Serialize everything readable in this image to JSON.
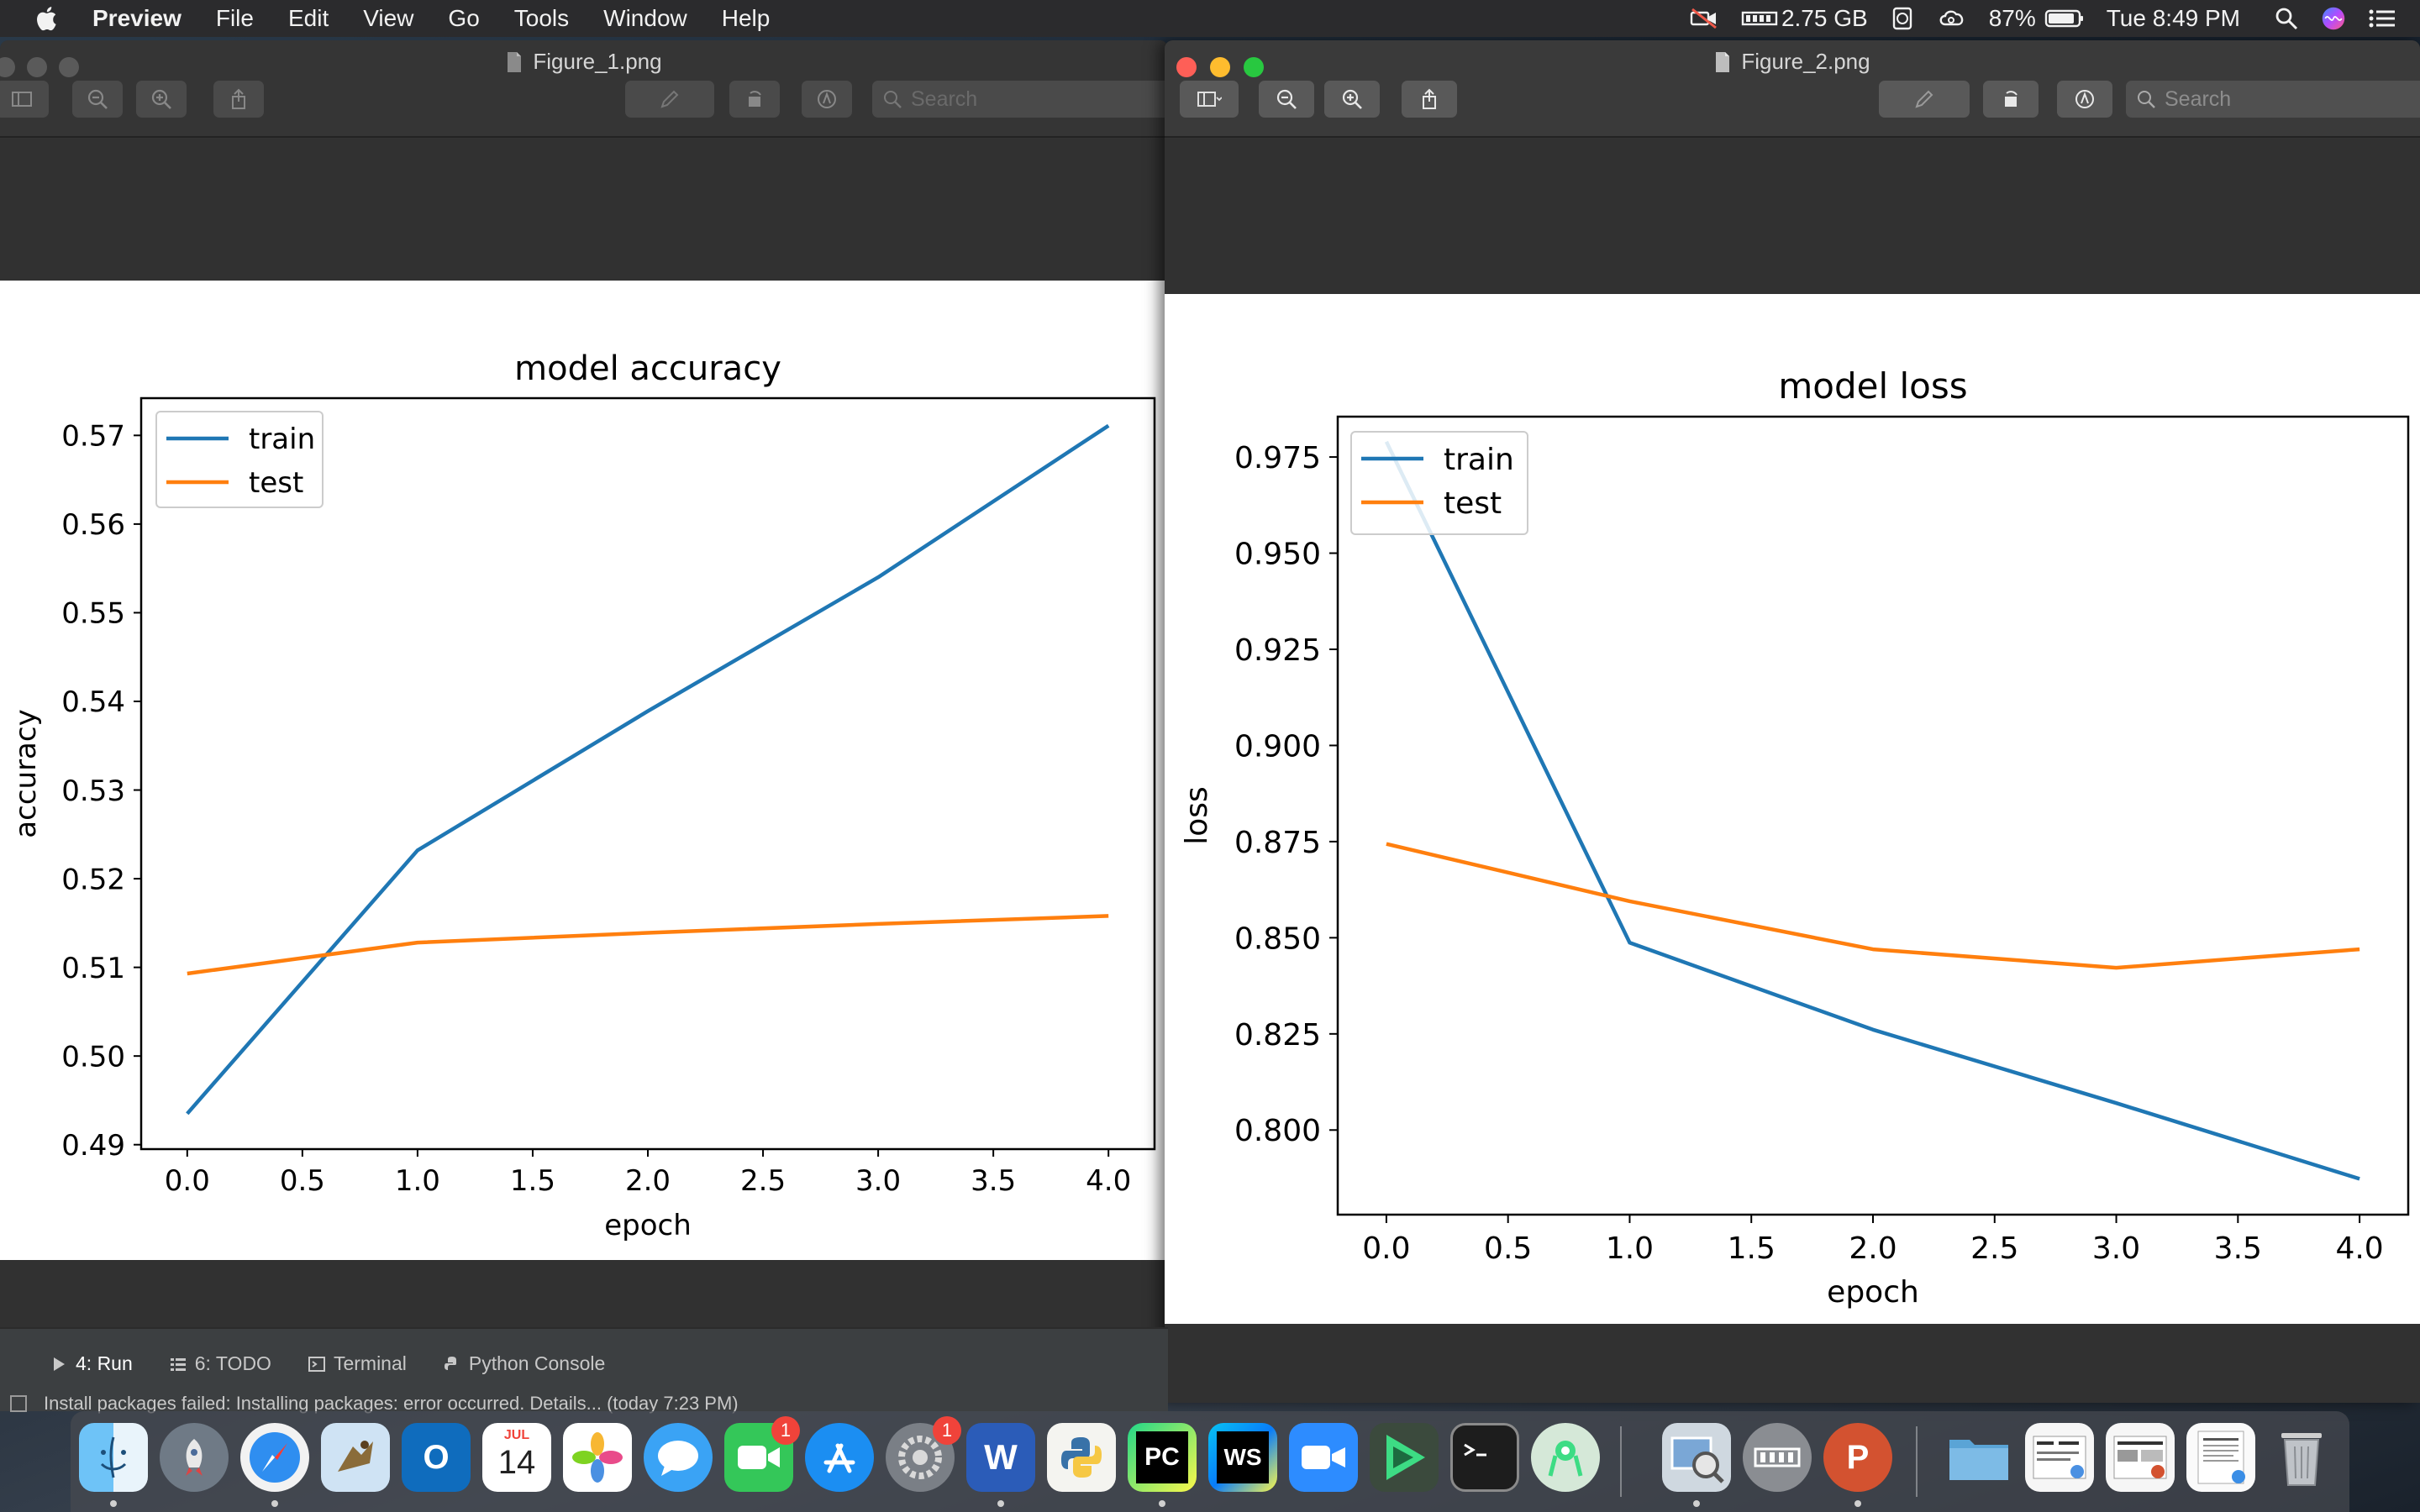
{
  "menubar": {
    "app_name": "Preview",
    "items": [
      "File",
      "Edit",
      "View",
      "Go",
      "Tools",
      "Window",
      "Help"
    ],
    "memory": "2.75 GB",
    "battery": "87%",
    "clock": "Tue 8:49 PM"
  },
  "window1": {
    "title": "Figure_1.png",
    "search_placeholder": "Search"
  },
  "window2": {
    "title": "Figure_2.png",
    "search_placeholder": "Search"
  },
  "ide": {
    "tabs": [
      {
        "label": "4: Run",
        "icon": "play-icon"
      },
      {
        "label": "6: TODO",
        "icon": "list-icon"
      },
      {
        "label": "Terminal",
        "icon": "terminal-icon"
      },
      {
        "label": "Python Console",
        "icon": "python-icon"
      }
    ],
    "status": "Install packages failed: Installing packages: error occurred. Details... (today 7:23 PM)"
  },
  "dock": {
    "calendar_month": "JUL",
    "calendar_day": "14",
    "facetime_badge": "1",
    "sysprefs_badge": "1",
    "word_label": "W",
    "pycharm_label": "PC",
    "webstorm_label": "WS",
    "powerpoint_label": "P",
    "outlook_label": "O",
    "icons": [
      "finder-icon",
      "launchpad-icon",
      "safari-icon",
      "preview-bird-icon",
      "outlook-icon",
      "calendar-icon",
      "photos-icon",
      "messages-icon",
      "facetime-icon",
      "app-store-icon",
      "system-preferences-icon",
      "word-icon",
      "python-launcher-icon",
      "pycharm-icon",
      "webstorm-icon",
      "zoom-icon",
      "android-studio-icon",
      "terminal-icon",
      "android-icon",
      "preview-icon",
      "memory-icon",
      "powerpoint-icon",
      "folder-icon",
      "stack-icon",
      "stack-icon",
      "document-icon",
      "trash-icon"
    ]
  },
  "chart_data": [
    {
      "type": "line",
      "title": "model accuracy",
      "xlabel": "epoch",
      "ylabel": "accuracy",
      "x": [
        0,
        1,
        2,
        3,
        4
      ],
      "xlim": [
        -0.2,
        4.2
      ],
      "ylim": [
        0.4895,
        0.5742
      ],
      "xticks": [
        "0.0",
        "0.5",
        "1.0",
        "1.5",
        "2.0",
        "2.5",
        "3.0",
        "3.5",
        "4.0"
      ],
      "yticks": [
        "0.49",
        "0.50",
        "0.51",
        "0.52",
        "0.53",
        "0.54",
        "0.55",
        "0.56",
        "0.57"
      ],
      "legend": "upper-left",
      "grid": false,
      "series": [
        {
          "name": "train",
          "color": "#1f77b4",
          "values": [
            0.4935,
            0.5232,
            0.5389,
            0.554,
            0.5711
          ]
        },
        {
          "name": "test",
          "color": "#ff7f0e",
          "values": [
            0.5093,
            0.5128,
            0.5139,
            0.5149,
            0.5158
          ]
        }
      ]
    },
    {
      "type": "line",
      "title": "model loss",
      "xlabel": "epoch",
      "ylabel": "loss",
      "x": [
        0,
        1,
        2,
        3,
        4
      ],
      "xlim": [
        -0.2,
        4.2
      ],
      "ylim": [
        0.778,
        0.9855
      ],
      "xticks": [
        "0.0",
        "0.5",
        "1.0",
        "1.5",
        "2.0",
        "2.5",
        "3.0",
        "3.5",
        "4.0"
      ],
      "yticks": [
        "0.800",
        "0.825",
        "0.850",
        "0.875",
        "0.900",
        "0.925",
        "0.950",
        "0.975"
      ],
      "legend": "upper-left",
      "grid": false,
      "series": [
        {
          "name": "train",
          "color": "#1f77b4",
          "values": [
            0.979,
            0.8487,
            0.8261,
            0.807,
            0.7873
          ]
        },
        {
          "name": "test",
          "color": "#ff7f0e",
          "values": [
            0.8744,
            0.8595,
            0.847,
            0.8422,
            0.847
          ]
        }
      ]
    }
  ]
}
